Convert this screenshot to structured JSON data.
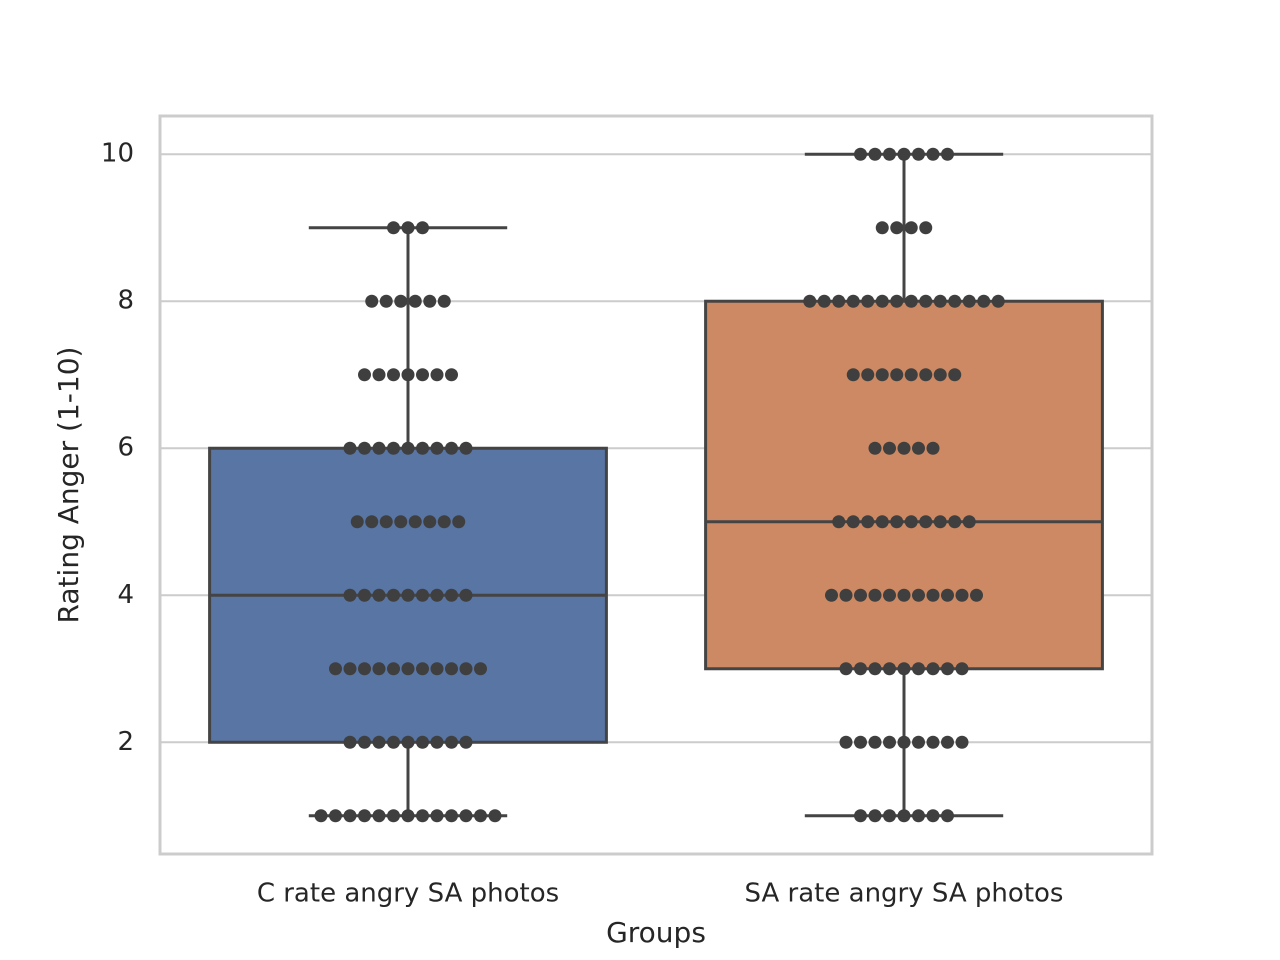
{
  "chart_data": {
    "type": "box",
    "x_label": "Groups",
    "y_label": "Rating Anger (1-10)",
    "ylim": [
      0.48,
      10.52
    ],
    "yticks": [
      2,
      4,
      6,
      8,
      10
    ],
    "grid": true,
    "series": [
      {
        "name": "C rate angry SA photos",
        "color": "#5875a4",
        "whisker_low": 1,
        "q1": 2,
        "median": 4,
        "q3": 6,
        "whisker_high": 9,
        "points": [
          1,
          1,
          1,
          1,
          1,
          1,
          1,
          1,
          1,
          1,
          1,
          1,
          1,
          2,
          2,
          2,
          2,
          2,
          2,
          2,
          2,
          2,
          3,
          3,
          3,
          3,
          3,
          3,
          3,
          3,
          3,
          3,
          3,
          4,
          4,
          4,
          4,
          4,
          4,
          4,
          4,
          4,
          5,
          5,
          5,
          5,
          5,
          5,
          5,
          5,
          6,
          6,
          6,
          6,
          6,
          6,
          6,
          6,
          6,
          7,
          7,
          7,
          7,
          7,
          7,
          7,
          8,
          8,
          8,
          8,
          8,
          8,
          9,
          9,
          9
        ]
      },
      {
        "name": "SA rate angry SA photos",
        "color": "#cc8963",
        "whisker_low": 1,
        "q1": 3,
        "median": 5,
        "q3": 8,
        "whisker_high": 10,
        "points": [
          1,
          1,
          1,
          1,
          1,
          1,
          1,
          2,
          2,
          2,
          2,
          2,
          2,
          2,
          2,
          2,
          3,
          3,
          3,
          3,
          3,
          3,
          3,
          3,
          3,
          4,
          4,
          4,
          4,
          4,
          4,
          4,
          4,
          4,
          4,
          4,
          5,
          5,
          5,
          5,
          5,
          5,
          5,
          5,
          5,
          5,
          6,
          6,
          6,
          6,
          6,
          7,
          7,
          7,
          7,
          7,
          7,
          7,
          7,
          8,
          8,
          8,
          8,
          8,
          8,
          8,
          8,
          8,
          8,
          8,
          8,
          8,
          8,
          9,
          9,
          9,
          9,
          10,
          10,
          10,
          10,
          10,
          10,
          10
        ]
      }
    ]
  }
}
